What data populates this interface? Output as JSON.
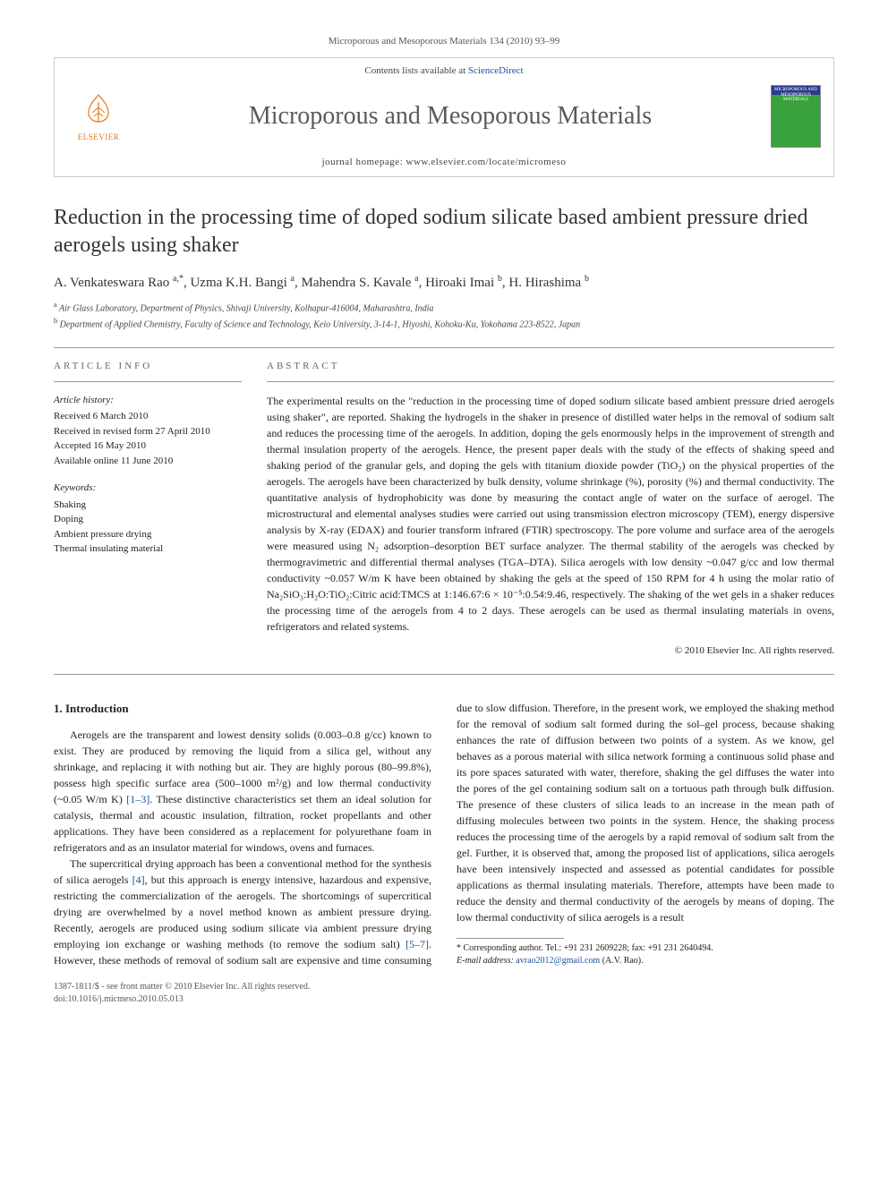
{
  "header": {
    "journal_ref": "Microporous and Mesoporous Materials 134 (2010) 93–99",
    "contents_line_prefix": "Contents lists available at ",
    "contents_line_link": "ScienceDirect",
    "journal_title": "Microporous and Mesoporous Materials",
    "homepage_label": "journal homepage: www.elsevier.com/locate/micromeso",
    "elsevier_label": "ELSEVIER",
    "cover_text": "MICROPOROUS AND MESOPOROUS MATERIALS"
  },
  "paper": {
    "title": "Reduction in the processing time of doped sodium silicate based ambient pressure dried aerogels using shaker",
    "authors_html": "A. Venkateswara Rao <sup>a,*</sup>, Uzma K.H. Bangi <sup>a</sup>, Mahendra S. Kavale <sup>a</sup>, Hiroaki Imai <sup>b</sup>, H. Hirashima <sup>b</sup>",
    "affiliations": [
      "a Air Glass Laboratory, Department of Physics, Shivaji University, Kolhapur-416004, Maharashtra, India",
      "b Department of Applied Chemistry, Faculty of Science and Technology, Keio University, 3-14-1, Hiyoshi, Kohoku-Ku, Yokohama 223-8522, Japan"
    ]
  },
  "article_info": {
    "head": "article info",
    "history_head": "Article history:",
    "history": [
      "Received 6 March 2010",
      "Received in revised form 27 April 2010",
      "Accepted 16 May 2010",
      "Available online 11 June 2010"
    ],
    "keywords_head": "Keywords:",
    "keywords": [
      "Shaking",
      "Doping",
      "Ambient pressure drying",
      "Thermal insulating material"
    ]
  },
  "abstract": {
    "head": "abstract",
    "text": "The experimental results on the \"reduction in the processing time of doped sodium silicate based ambient pressure dried aerogels using shaker\", are reported. Shaking the hydrogels in the shaker in presence of distilled water helps in the removal of sodium salt and reduces the processing time of the aerogels. In addition, doping the gels enormously helps in the improvement of strength and thermal insulation property of the aerogels. Hence, the present paper deals with the study of the effects of shaking speed and shaking period of the granular gels, and doping the gels with titanium dioxide powder (TiO₂) on the physical properties of the aerogels. The aerogels have been characterized by bulk density, volume shrinkage (%), porosity (%) and thermal conductivity. The quantitative analysis of hydrophobicity was done by measuring the contact angle of water on the surface of aerogel. The microstructural and elemental analyses studies were carried out using transmission electron microscopy (TEM), energy dispersive analysis by X-ray (EDAX) and fourier transform infrared (FTIR) spectroscopy. The pore volume and surface area of the aerogels were measured using N₂ adsorption–desorption BET surface analyzer. The thermal stability of the aerogels was checked by thermogravimetric and differential thermal analyses (TGA–DTA). Silica aerogels with low density ~0.047 g/cc and low thermal conductivity ~0.057 W/m K have been obtained by shaking the gels at the speed of 150 RPM for 4 h using the molar ratio of Na₂SiO₃:H₂O:TiO₂:Citric acid:TMCS at 1:146.67:6 × 10⁻⁵:0.54:9.46, respectively. The shaking of the wet gels in a shaker reduces the processing time of the aerogels from 4 to 2 days. These aerogels can be used as thermal insulating materials in ovens, refrigerators and related systems.",
    "copyright": "© 2010 Elsevier Inc. All rights reserved."
  },
  "body": {
    "section_head": "1. Introduction",
    "p1_a": "Aerogels are the transparent and lowest density solids (0.003–0.8 g/cc) known to exist. They are produced by removing the liquid from a silica gel, without any shrinkage, and replacing it with nothing but air. They are highly porous (80–99.8%), possess high specific surface area (500–1000 m²/g) and low thermal conductivity (~0.05 W/m K) ",
    "p1_ref": "[1–3]",
    "p1_b": ". These distinctive characteristics set them an ideal solution for catalysis, thermal and acoustic insulation, filtration, rocket propellants and other applications. They have been considered as a replacement for polyurethane foam in refrigerators and as an insulator material for windows, ovens and furnaces.",
    "p2_a": "The supercritical drying approach has been a conventional method for the synthesis of silica aerogels ",
    "p2_ref": "[4]",
    "p2_b": ", but this approach is energy intensive, hazardous and expensive, restricting the commercialization of the aerogels. The shortcomings of supercritical drying are overwhelmed by a novel method known as ambient pressure drying. Recently, aerogels are produced using sodium sil",
    "p3_a": "icate via ambient pressure drying employing ion exchange or washing methods (to remove the sodium salt) ",
    "p3_ref": "[5–7]",
    "p3_b": ". However, these methods of removal of sodium salt are expensive and time consuming due to slow diffusion. Therefore, in the present work, we employed the shaking method for the removal of sodium salt formed during the sol–gel process, because shaking enhances the rate of diffusion between two points of a system. As we know, gel behaves as a porous material with silica network forming a continuous solid phase and its pore spaces saturated with water, therefore, shaking the gel diffuses the water into the pores of the gel containing sodium salt on a tortuous path through bulk diffusion. The presence of these clusters of silica leads to an increase in the mean path of diffusing molecules between two points in the system. Hence, the shaking process reduces the processing time of the aerogels by a rapid removal of sodium salt from the gel. Further, it is observed that, among the proposed list of applications, silica aerogels have been intensively inspected and assessed as potential candidates for possible applications as thermal insulating materials. Therefore, attempts have been made to reduce the density and thermal conductivity of the aerogels by means of doping. The low thermal conductivity of silica aerogels is a result"
  },
  "footnote": {
    "line1": "* Corresponding author. Tel.: +91 231 2609228; fax: +91 231 2640494.",
    "line2_a": "E-mail address: ",
    "line2_email": "avrao2012@gmail.com",
    "line2_b": " (A.V. Rao)."
  },
  "footer": {
    "line1": "1387-1811/$ - see front matter © 2010 Elsevier Inc. All rights reserved.",
    "line2": "doi:10.1016/j.micmeso.2010.05.013"
  },
  "style": {
    "link_color": "#1a4f9c",
    "elsevier_color": "#e67817"
  }
}
